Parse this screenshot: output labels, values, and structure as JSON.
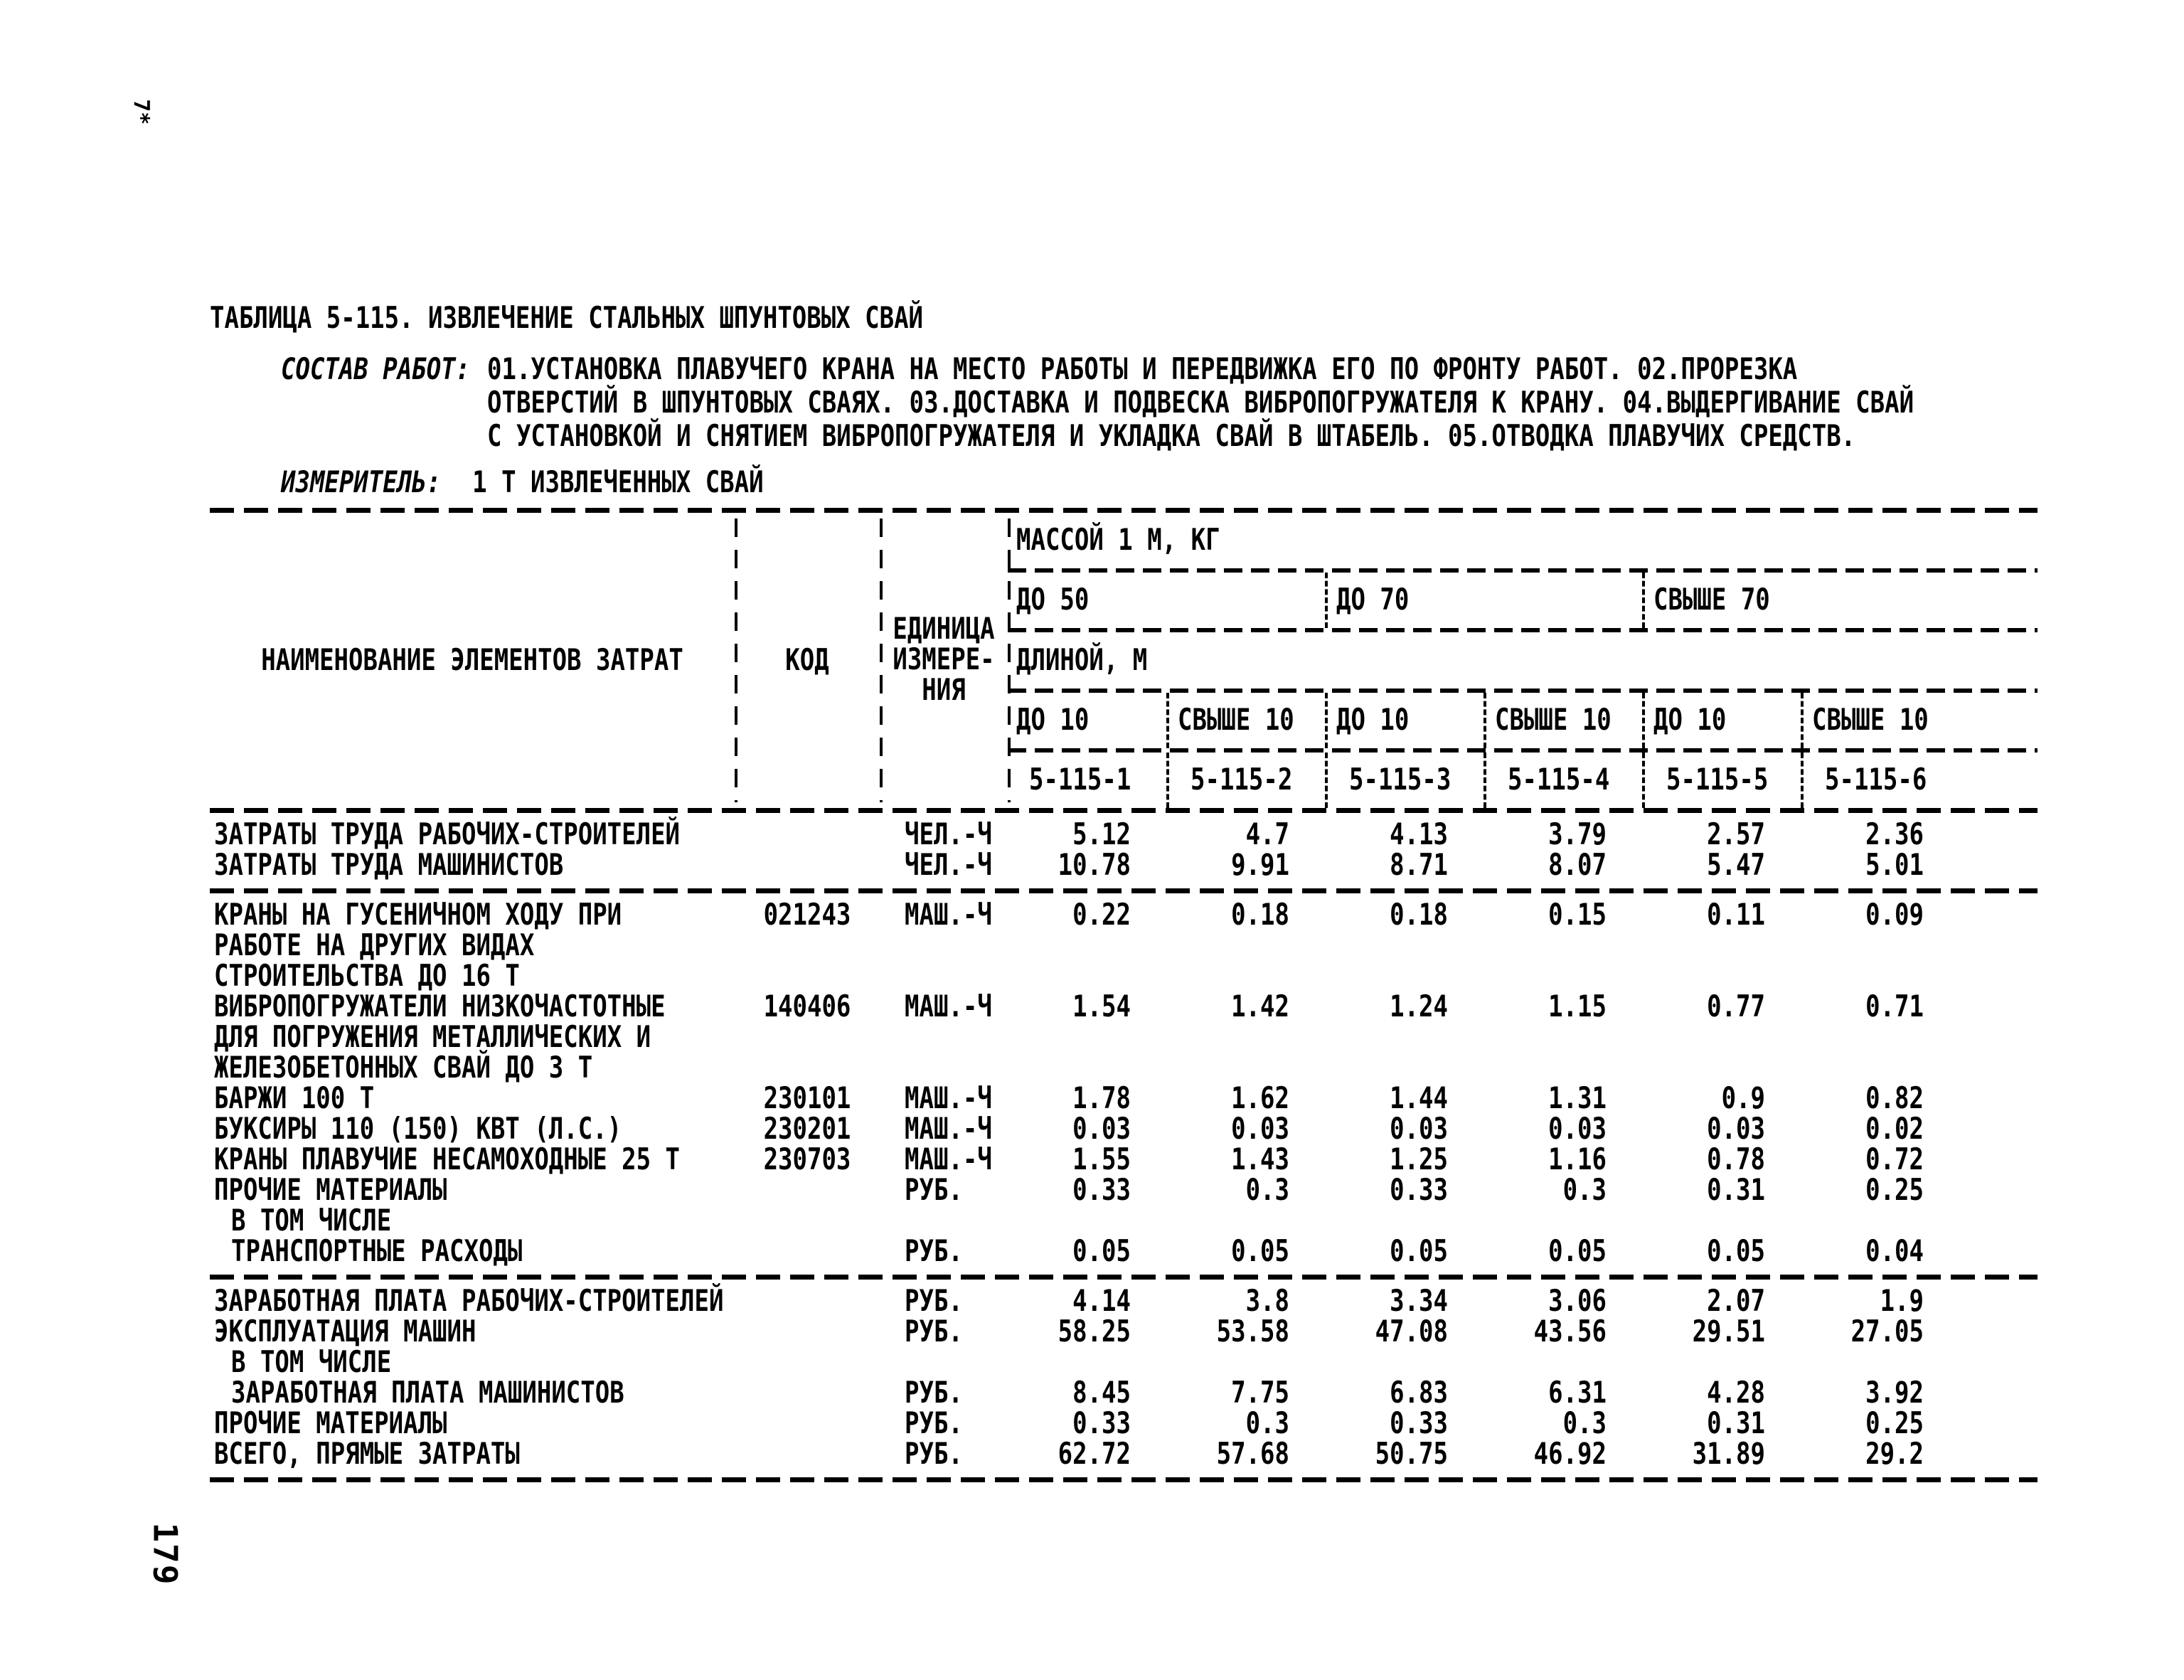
{
  "page": {
    "margin_note": "7*",
    "page_number": "179"
  },
  "doc": {
    "title": "ТАБЛИЦА 5-115. ИЗВЛЕЧЕНИЕ СТАЛЬНЫХ ШПУНТОВЫХ СВАЙ",
    "sostav_label": "СОСТАВ РАБОТ:",
    "sostav_lines": [
      "01.УСТАНОВКА ПЛАВУЧЕГО КРАНА НА МЕСТО РАБОТЫ И ПЕРЕДВИЖКА ЕГО ПО ФРОНТУ РАБОТ. 02.ПРОРЕЗКА",
      "ОТВЕРСТИЙ В ШПУНТОВЫХ СВАЯХ. 03.ДОСТАВКА И ПОДВЕСКА ВИБРОПОГРУЖАТЕЛЯ К КРАНУ. 04.ВЫДЕРГИВАНИЕ СВАЙ",
      "С УСТАНОВКОЙ И СНЯТИЕМ ВИБРОПОГРУЖАТЕЛЯ И УКЛАДКА СВАЙ В ШТАБЕЛЬ. 05.ОТВОДКА ПЛАВУЧИХ СРЕДСТВ."
    ],
    "izmeritel_label": "ИЗМЕРИТЕЛЬ:",
    "izmeritel_value": "1 Т ИЗВЛЕЧЕННЫХ СВАЙ"
  },
  "table": {
    "name_header": "НАИМЕНОВАНИЕ ЭЛЕМЕНТОВ ЗАТРАТ",
    "code_header": "КОД",
    "unit_header_lines": [
      "ЕДИНИЦА",
      "ИЗМЕРЕ-",
      "НИЯ"
    ],
    "mass_header": "МАССОЙ 1 М, КГ",
    "mass_groups": [
      "ДО 50",
      "ДО 70",
      "СВЫШЕ 70"
    ],
    "length_header": "ДЛИНОЙ, М",
    "length_cols": [
      "ДО 10",
      "СВЫШЕ 10",
      "ДО 10",
      "СВЫШЕ 10",
      "ДО 10",
      "СВЫШЕ 10"
    ],
    "norm_codes": [
      "5-115-1",
      "5-115-2",
      "5-115-3",
      "5-115-4",
      "5-115-5",
      "5-115-6"
    ],
    "sections": [
      {
        "rows": [
          {
            "name_lines": [
              "ЗАТРАТЫ ТРУДА РАБОЧИХ-СТРОИТЕЛЕЙ"
            ],
            "code": "",
            "unit": "ЧЕЛ.-Ч",
            "values": [
              "5.12",
              "4.7",
              "4.13",
              "3.79",
              "2.57",
              "2.36"
            ]
          },
          {
            "name_lines": [
              "ЗАТРАТЫ ТРУДА МАШИНИСТОВ"
            ],
            "code": "",
            "unit": "ЧЕЛ.-Ч",
            "values": [
              "10.78",
              "9.91",
              "8.71",
              "8.07",
              "5.47",
              "5.01"
            ]
          }
        ]
      },
      {
        "rows": [
          {
            "name_lines": [
              "КРАНЫ НА ГУСЕНИЧНОМ ХОДУ ПРИ",
              "РАБОТЕ НА ДРУГИХ ВИДАХ",
              "СТРОИТЕЛЬСТВА ДО 16 Т"
            ],
            "code": "021243",
            "unit": "МАШ.-Ч",
            "values": [
              "0.22",
              "0.18",
              "0.18",
              "0.15",
              "0.11",
              "0.09"
            ]
          },
          {
            "name_lines": [
              "ВИБРОПОГРУЖАТЕЛИ НИЗКОЧАСТОТНЫЕ",
              "ДЛЯ ПОГРУЖЕНИЯ МЕТАЛЛИЧЕСКИХ И",
              "ЖЕЛЕЗОБЕТОННЫХ СВАЙ ДО 3 Т"
            ],
            "code": "140406",
            "unit": "МАШ.-Ч",
            "values": [
              "1.54",
              "1.42",
              "1.24",
              "1.15",
              "0.77",
              "0.71"
            ]
          },
          {
            "name_lines": [
              "БАРЖИ 100 Т"
            ],
            "code": "230101",
            "unit": "МАШ.-Ч",
            "values": [
              "1.78",
              "1.62",
              "1.44",
              "1.31",
              "0.9",
              "0.82"
            ]
          },
          {
            "name_lines": [
              "БУКСИРЫ 110 (150) КВТ (Л.С.)"
            ],
            "code": "230201",
            "unit": "МАШ.-Ч",
            "values": [
              "0.03",
              "0.03",
              "0.03",
              "0.03",
              "0.03",
              "0.02"
            ]
          },
          {
            "name_lines": [
              "КРАНЫ ПЛАВУЧИЕ НЕСАМОХОДНЫЕ 25 Т"
            ],
            "code": "230703",
            "unit": "МАШ.-Ч",
            "values": [
              "1.55",
              "1.43",
              "1.25",
              "1.16",
              "0.78",
              "0.72"
            ]
          },
          {
            "name_lines": [
              "ПРОЧИЕ МАТЕРИАЛЫ"
            ],
            "code": "",
            "unit": "РУБ.",
            "values": [
              "0.33",
              "0.3",
              "0.33",
              "0.3",
              "0.31",
              "0.25"
            ]
          },
          {
            "name_lines": [
              "В ТОМ ЧИСЛЕ"
            ],
            "indent": true,
            "code": "",
            "unit": "",
            "values": []
          },
          {
            "name_lines": [
              "ТРАНСПОРТНЫЕ РАСХОДЫ"
            ],
            "indent": true,
            "code": "",
            "unit": "РУБ.",
            "values": [
              "0.05",
              "0.05",
              "0.05",
              "0.05",
              "0.05",
              "0.04"
            ]
          }
        ]
      },
      {
        "rows": [
          {
            "name_lines": [
              "ЗАРАБОТНАЯ ПЛАТА РАБОЧИХ-СТРОИТЕЛЕЙ"
            ],
            "code": "",
            "unit": "РУБ.",
            "values": [
              "4.14",
              "3.8",
              "3.34",
              "3.06",
              "2.07",
              "1.9"
            ]
          },
          {
            "name_lines": [
              "ЭКСПЛУАТАЦИЯ МАШИН"
            ],
            "code": "",
            "unit": "РУБ.",
            "values": [
              "58.25",
              "53.58",
              "47.08",
              "43.56",
              "29.51",
              "27.05"
            ]
          },
          {
            "name_lines": [
              "В ТОМ ЧИСЛЕ"
            ],
            "indent": true,
            "code": "",
            "unit": "",
            "values": []
          },
          {
            "name_lines": [
              "ЗАРАБОТНАЯ ПЛАТА МАШИНИСТОВ"
            ],
            "indent": true,
            "code": "",
            "unit": "РУБ.",
            "values": [
              "8.45",
              "7.75",
              "6.83",
              "6.31",
              "4.28",
              "3.92"
            ]
          },
          {
            "name_lines": [
              "ПРОЧИЕ МАТЕРИАЛЫ"
            ],
            "code": "",
            "unit": "РУБ.",
            "values": [
              "0.33",
              "0.3",
              "0.33",
              "0.3",
              "0.31",
              "0.25"
            ]
          },
          {
            "name_lines": [
              "ВСЕГО, ПРЯМЫЕ ЗАТРАТЫ"
            ],
            "code": "",
            "unit": "РУБ.",
            "values": [
              "62.72",
              "57.68",
              "50.75",
              "46.92",
              "31.89",
              "29.2"
            ]
          }
        ]
      }
    ]
  }
}
